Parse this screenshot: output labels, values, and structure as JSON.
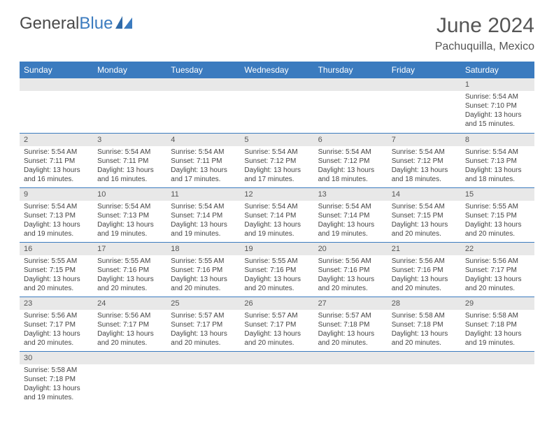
{
  "brand": {
    "part1": "General",
    "part2": "Blue"
  },
  "title": "June 2024",
  "location": "Pachuquilla, Mexico",
  "colors": {
    "header_bg": "#3b7bbf",
    "header_text": "#ffffff",
    "daynum_bg": "#e8e8e8",
    "border": "#3b7bbf",
    "text": "#444444",
    "title_text": "#555555"
  },
  "day_headers": [
    "Sunday",
    "Monday",
    "Tuesday",
    "Wednesday",
    "Thursday",
    "Friday",
    "Saturday"
  ],
  "weeks": [
    [
      {
        "n": "",
        "sr": "",
        "ss": "",
        "dl1": "",
        "dl2": ""
      },
      {
        "n": "",
        "sr": "",
        "ss": "",
        "dl1": "",
        "dl2": ""
      },
      {
        "n": "",
        "sr": "",
        "ss": "",
        "dl1": "",
        "dl2": ""
      },
      {
        "n": "",
        "sr": "",
        "ss": "",
        "dl1": "",
        "dl2": ""
      },
      {
        "n": "",
        "sr": "",
        "ss": "",
        "dl1": "",
        "dl2": ""
      },
      {
        "n": "",
        "sr": "",
        "ss": "",
        "dl1": "",
        "dl2": ""
      },
      {
        "n": "1",
        "sr": "Sunrise: 5:54 AM",
        "ss": "Sunset: 7:10 PM",
        "dl1": "Daylight: 13 hours",
        "dl2": "and 15 minutes."
      }
    ],
    [
      {
        "n": "2",
        "sr": "Sunrise: 5:54 AM",
        "ss": "Sunset: 7:11 PM",
        "dl1": "Daylight: 13 hours",
        "dl2": "and 16 minutes."
      },
      {
        "n": "3",
        "sr": "Sunrise: 5:54 AM",
        "ss": "Sunset: 7:11 PM",
        "dl1": "Daylight: 13 hours",
        "dl2": "and 16 minutes."
      },
      {
        "n": "4",
        "sr": "Sunrise: 5:54 AM",
        "ss": "Sunset: 7:11 PM",
        "dl1": "Daylight: 13 hours",
        "dl2": "and 17 minutes."
      },
      {
        "n": "5",
        "sr": "Sunrise: 5:54 AM",
        "ss": "Sunset: 7:12 PM",
        "dl1": "Daylight: 13 hours",
        "dl2": "and 17 minutes."
      },
      {
        "n": "6",
        "sr": "Sunrise: 5:54 AM",
        "ss": "Sunset: 7:12 PM",
        "dl1": "Daylight: 13 hours",
        "dl2": "and 18 minutes."
      },
      {
        "n": "7",
        "sr": "Sunrise: 5:54 AM",
        "ss": "Sunset: 7:12 PM",
        "dl1": "Daylight: 13 hours",
        "dl2": "and 18 minutes."
      },
      {
        "n": "8",
        "sr": "Sunrise: 5:54 AM",
        "ss": "Sunset: 7:13 PM",
        "dl1": "Daylight: 13 hours",
        "dl2": "and 18 minutes."
      }
    ],
    [
      {
        "n": "9",
        "sr": "Sunrise: 5:54 AM",
        "ss": "Sunset: 7:13 PM",
        "dl1": "Daylight: 13 hours",
        "dl2": "and 19 minutes."
      },
      {
        "n": "10",
        "sr": "Sunrise: 5:54 AM",
        "ss": "Sunset: 7:13 PM",
        "dl1": "Daylight: 13 hours",
        "dl2": "and 19 minutes."
      },
      {
        "n": "11",
        "sr": "Sunrise: 5:54 AM",
        "ss": "Sunset: 7:14 PM",
        "dl1": "Daylight: 13 hours",
        "dl2": "and 19 minutes."
      },
      {
        "n": "12",
        "sr": "Sunrise: 5:54 AM",
        "ss": "Sunset: 7:14 PM",
        "dl1": "Daylight: 13 hours",
        "dl2": "and 19 minutes."
      },
      {
        "n": "13",
        "sr": "Sunrise: 5:54 AM",
        "ss": "Sunset: 7:14 PM",
        "dl1": "Daylight: 13 hours",
        "dl2": "and 19 minutes."
      },
      {
        "n": "14",
        "sr": "Sunrise: 5:54 AM",
        "ss": "Sunset: 7:15 PM",
        "dl1": "Daylight: 13 hours",
        "dl2": "and 20 minutes."
      },
      {
        "n": "15",
        "sr": "Sunrise: 5:55 AM",
        "ss": "Sunset: 7:15 PM",
        "dl1": "Daylight: 13 hours",
        "dl2": "and 20 minutes."
      }
    ],
    [
      {
        "n": "16",
        "sr": "Sunrise: 5:55 AM",
        "ss": "Sunset: 7:15 PM",
        "dl1": "Daylight: 13 hours",
        "dl2": "and 20 minutes."
      },
      {
        "n": "17",
        "sr": "Sunrise: 5:55 AM",
        "ss": "Sunset: 7:16 PM",
        "dl1": "Daylight: 13 hours",
        "dl2": "and 20 minutes."
      },
      {
        "n": "18",
        "sr": "Sunrise: 5:55 AM",
        "ss": "Sunset: 7:16 PM",
        "dl1": "Daylight: 13 hours",
        "dl2": "and 20 minutes."
      },
      {
        "n": "19",
        "sr": "Sunrise: 5:55 AM",
        "ss": "Sunset: 7:16 PM",
        "dl1": "Daylight: 13 hours",
        "dl2": "and 20 minutes."
      },
      {
        "n": "20",
        "sr": "Sunrise: 5:56 AM",
        "ss": "Sunset: 7:16 PM",
        "dl1": "Daylight: 13 hours",
        "dl2": "and 20 minutes."
      },
      {
        "n": "21",
        "sr": "Sunrise: 5:56 AM",
        "ss": "Sunset: 7:16 PM",
        "dl1": "Daylight: 13 hours",
        "dl2": "and 20 minutes."
      },
      {
        "n": "22",
        "sr": "Sunrise: 5:56 AM",
        "ss": "Sunset: 7:17 PM",
        "dl1": "Daylight: 13 hours",
        "dl2": "and 20 minutes."
      }
    ],
    [
      {
        "n": "23",
        "sr": "Sunrise: 5:56 AM",
        "ss": "Sunset: 7:17 PM",
        "dl1": "Daylight: 13 hours",
        "dl2": "and 20 minutes."
      },
      {
        "n": "24",
        "sr": "Sunrise: 5:56 AM",
        "ss": "Sunset: 7:17 PM",
        "dl1": "Daylight: 13 hours",
        "dl2": "and 20 minutes."
      },
      {
        "n": "25",
        "sr": "Sunrise: 5:57 AM",
        "ss": "Sunset: 7:17 PM",
        "dl1": "Daylight: 13 hours",
        "dl2": "and 20 minutes."
      },
      {
        "n": "26",
        "sr": "Sunrise: 5:57 AM",
        "ss": "Sunset: 7:17 PM",
        "dl1": "Daylight: 13 hours",
        "dl2": "and 20 minutes."
      },
      {
        "n": "27",
        "sr": "Sunrise: 5:57 AM",
        "ss": "Sunset: 7:18 PM",
        "dl1": "Daylight: 13 hours",
        "dl2": "and 20 minutes."
      },
      {
        "n": "28",
        "sr": "Sunrise: 5:58 AM",
        "ss": "Sunset: 7:18 PM",
        "dl1": "Daylight: 13 hours",
        "dl2": "and 20 minutes."
      },
      {
        "n": "29",
        "sr": "Sunrise: 5:58 AM",
        "ss": "Sunset: 7:18 PM",
        "dl1": "Daylight: 13 hours",
        "dl2": "and 19 minutes."
      }
    ],
    [
      {
        "n": "30",
        "sr": "Sunrise: 5:58 AM",
        "ss": "Sunset: 7:18 PM",
        "dl1": "Daylight: 13 hours",
        "dl2": "and 19 minutes."
      },
      {
        "n": "",
        "sr": "",
        "ss": "",
        "dl1": "",
        "dl2": ""
      },
      {
        "n": "",
        "sr": "",
        "ss": "",
        "dl1": "",
        "dl2": ""
      },
      {
        "n": "",
        "sr": "",
        "ss": "",
        "dl1": "",
        "dl2": ""
      },
      {
        "n": "",
        "sr": "",
        "ss": "",
        "dl1": "",
        "dl2": ""
      },
      {
        "n": "",
        "sr": "",
        "ss": "",
        "dl1": "",
        "dl2": ""
      },
      {
        "n": "",
        "sr": "",
        "ss": "",
        "dl1": "",
        "dl2": ""
      }
    ]
  ]
}
